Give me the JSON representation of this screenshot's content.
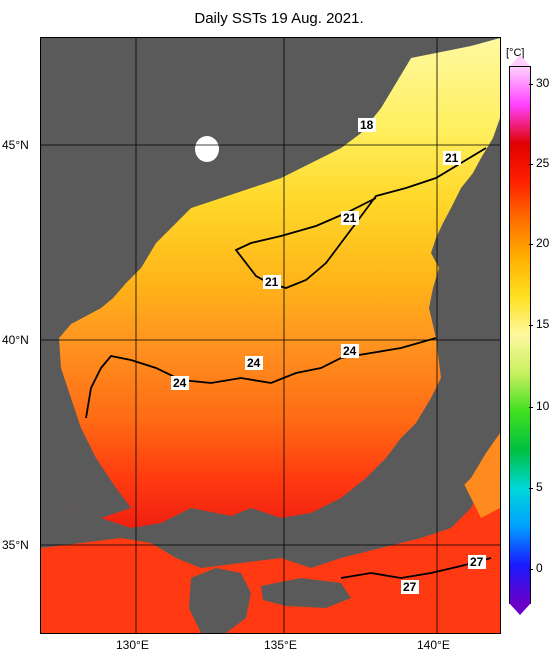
{
  "title": "Daily SSTs 19 Aug. 2021.",
  "latitude_labels": [
    "45°N",
    "40°N",
    "35°N"
  ],
  "longitude_labels": [
    "130°E",
    "135°E",
    "140°E"
  ],
  "colorbar": {
    "unit": "[°C]",
    "ticks": [
      "30",
      "25",
      "20",
      "15",
      "10",
      "5",
      "0"
    ],
    "range": [
      -2,
      31
    ],
    "colors": [
      "#6a00c8",
      "#1a1aff",
      "#00a0ff",
      "#00d8d8",
      "#00c040",
      "#40e020",
      "#c8f060",
      "#fff8a0",
      "#ffe020",
      "#ffb000",
      "#ff7000",
      "#ff2000",
      "#e00000",
      "#ff40ff",
      "#ffd0ff"
    ]
  },
  "contour_labels": [
    {
      "text": "18"
    },
    {
      "text": "21"
    },
    {
      "text": "21"
    },
    {
      "text": "21"
    },
    {
      "text": "24"
    },
    {
      "text": "24"
    },
    {
      "text": "24"
    },
    {
      "text": "27"
    },
    {
      "text": "27"
    }
  ],
  "colors": {
    "land": "#5a5a5a",
    "sea_cold": "#fff45a",
    "sea_mid": "#ffc21a",
    "sea_warm": "#ff8a1e",
    "sea_hot": "#ff3a10"
  }
}
